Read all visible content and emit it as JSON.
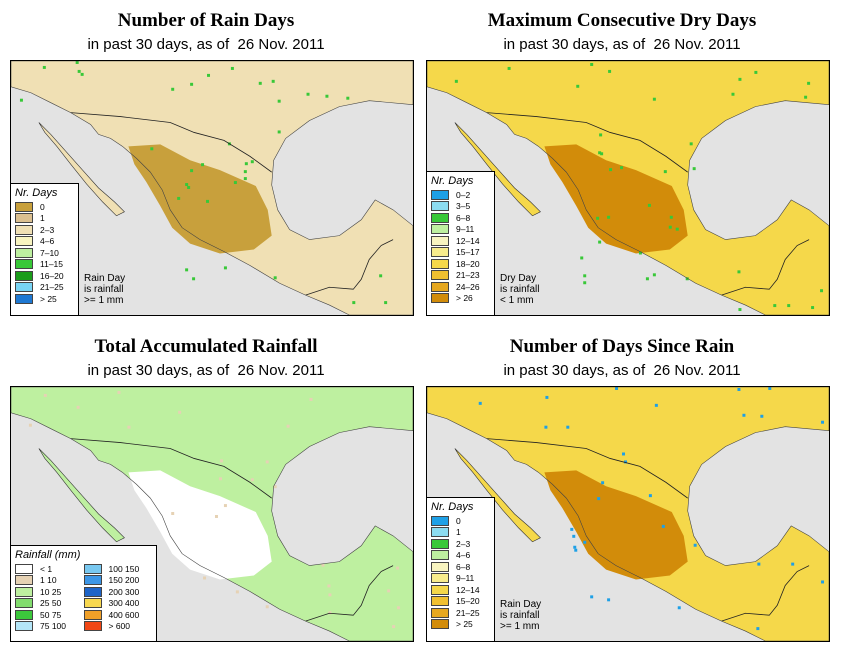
{
  "panels": [
    {
      "title": "Number of Rain Days",
      "subtitle_prefix": "in past 30 days, as of",
      "date": "26 Nov. 2011",
      "legend_title": "Nr. Days",
      "legend": [
        {
          "label": "0",
          "color": "#c8a03c"
        },
        {
          "label": "1",
          "color": "#dcc090"
        },
        {
          "label": "2–3",
          "color": "#f0e0b4"
        },
        {
          "label": "4–6",
          "color": "#f8f4c0"
        },
        {
          "label": "7–10",
          "color": "#bef0a0"
        },
        {
          "label": "11–15",
          "color": "#38c838"
        },
        {
          "label": "16–20",
          "color": "#1a9c1a"
        },
        {
          "label": "21–25",
          "color": "#78d4f4"
        },
        {
          "label": "> 25",
          "color": "#1e78d2"
        }
      ],
      "note": [
        "Rain Day",
        "is rainfall",
        ">= 1 mm"
      ],
      "land_color": "#f0e0b4",
      "interior_color": "#c8a03c",
      "speck_color": "#38c838"
    },
    {
      "title": "Maximum Consecutive Dry Days",
      "subtitle_prefix": "in past 30 days, as of",
      "date": "26 Nov. 2011",
      "legend_title": "Nr. Days",
      "legend": [
        {
          "label": "0–2",
          "color": "#1ea0e6"
        },
        {
          "label": "3–5",
          "color": "#8cdcf0"
        },
        {
          "label": "6–8",
          "color": "#38c838"
        },
        {
          "label": "9–11",
          "color": "#bef0a0"
        },
        {
          "label": "12–14",
          "color": "#f8f4c0"
        },
        {
          "label": "15–17",
          "color": "#f8ec8c"
        },
        {
          "label": "18–20",
          "color": "#f5d84a"
        },
        {
          "label": "21–23",
          "color": "#f0c030"
        },
        {
          "label": "24–26",
          "color": "#e6a820"
        },
        {
          "label": "> 26",
          "color": "#d28c0a"
        }
      ],
      "note": [
        "Dry Day",
        "is rainfall",
        "< 1 mm"
      ],
      "land_color": "#f5d84a",
      "interior_color": "#d28c0a",
      "speck_color": "#38c838"
    },
    {
      "title": "Total Accumulated Rainfall",
      "subtitle_prefix": "in past 30 days, as of",
      "date": "26 Nov. 2011",
      "legend_title": "Rainfall (mm)",
      "legend_left": [
        {
          "label": "< 1",
          "color": "#ffffff"
        },
        {
          "label": "1    10",
          "color": "#e6d2b4"
        },
        {
          "label": "10    25",
          "color": "#bef0a0"
        },
        {
          "label": "25    50",
          "color": "#82dc6e"
        },
        {
          "label": "50    75",
          "color": "#3cc83c"
        },
        {
          "label": "75    100",
          "color": "#b4e6f8"
        }
      ],
      "legend_right": [
        {
          "label": "100    150",
          "color": "#78c8f0"
        },
        {
          "label": "150    200",
          "color": "#3c96e6"
        },
        {
          "label": "200    300",
          "color": "#1e64c8"
        },
        {
          "label": "300    400",
          "color": "#f8d850"
        },
        {
          "label": "400    600",
          "color": "#f0a028"
        },
        {
          "label": "> 600",
          "color": "#f04614"
        }
      ],
      "land_color": "#bef0a0",
      "interior_color": "#ffffff",
      "speck_color": "#e6d2b4"
    },
    {
      "title": "Number of Days Since Rain",
      "subtitle_prefix": "in past 30 days, as of",
      "date": "26 Nov. 2011",
      "legend_title": "Nr. Days",
      "legend": [
        {
          "label": "0",
          "color": "#1ea0e6"
        },
        {
          "label": "1",
          "color": "#8cdcf0"
        },
        {
          "label": "2–3",
          "color": "#38c838"
        },
        {
          "label": "4–6",
          "color": "#bef0a0"
        },
        {
          "label": "6–8",
          "color": "#f8f4c0"
        },
        {
          "label": "9–11",
          "color": "#f8ec8c"
        },
        {
          "label": "12–14",
          "color": "#f5d84a"
        },
        {
          "label": "15–20",
          "color": "#f0c030"
        },
        {
          "label": "21–25",
          "color": "#e6a820"
        },
        {
          "label": "> 25",
          "color": "#d28c0a"
        }
      ],
      "note": [
        "Rain Day",
        "is rainfall",
        ">= 1 mm"
      ],
      "land_color": "#f5d84a",
      "interior_color": "#d28c0a",
      "speck_color": "#1ea0e6"
    }
  ]
}
